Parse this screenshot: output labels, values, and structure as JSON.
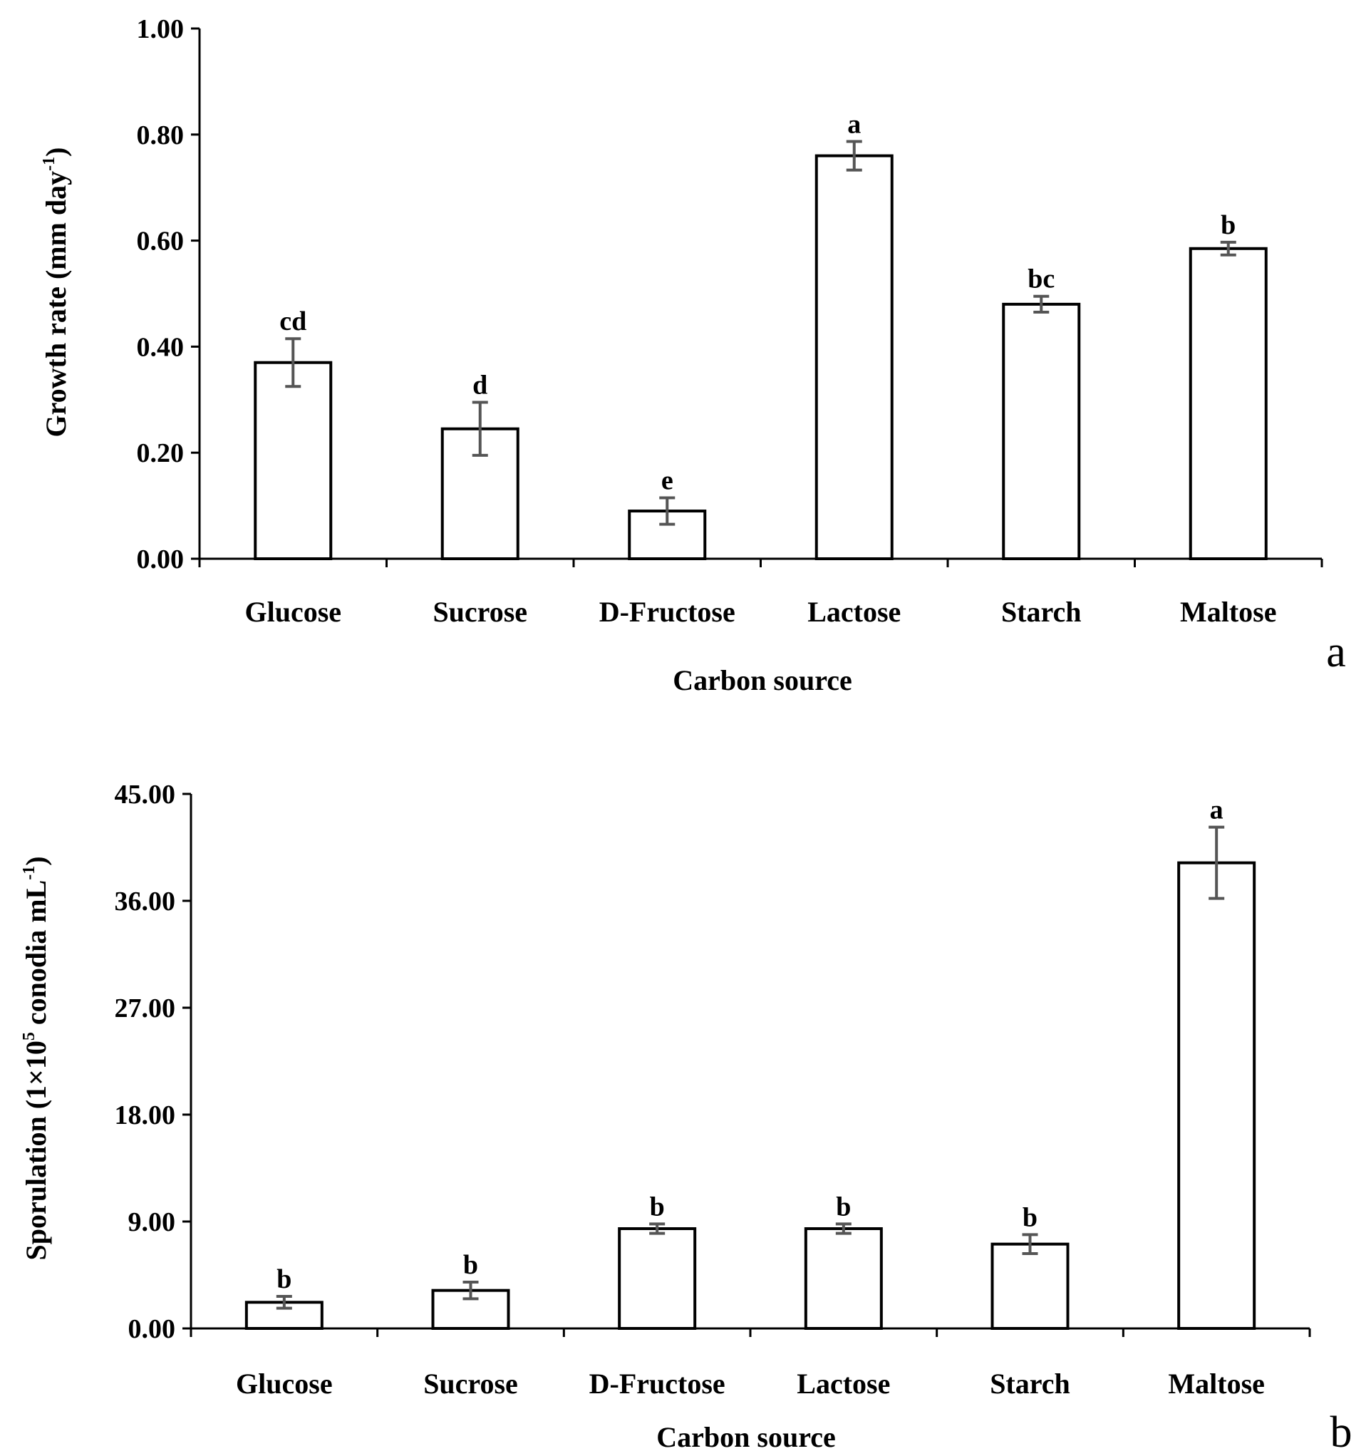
{
  "chart_data": [
    {
      "type": "bar",
      "panel": "a",
      "categories": [
        "Glucose",
        "Sucrose",
        "D-Fructose",
        "Lactose",
        "Starch",
        "Maltose"
      ],
      "values": [
        0.37,
        0.245,
        0.09,
        0.76,
        0.48,
        0.585
      ],
      "errors": [
        0.045,
        0.05,
        0.025,
        0.027,
        0.015,
        0.012
      ],
      "significance": [
        "cd",
        "d",
        "e",
        "a",
        "bc",
        "b"
      ],
      "yticks": [
        "0.00",
        "0.20",
        "0.40",
        "0.60",
        "0.80",
        "1.00"
      ],
      "ylim": [
        0,
        1.0
      ],
      "xlabel": "Carbon source",
      "ylabel": {
        "main": "Growth rate (mm day",
        "sup": "-1",
        "end": ")"
      }
    },
    {
      "type": "bar",
      "panel": "b",
      "categories": [
        "Glucose",
        "Sucrose",
        "D-Fructose",
        "Lactose",
        "Starch",
        "Maltose"
      ],
      "values": [
        2.2,
        3.2,
        8.4,
        8.4,
        7.1,
        39.2
      ],
      "errors": [
        0.5,
        0.7,
        0.4,
        0.4,
        0.8,
        3.0
      ],
      "significance": [
        "b",
        "b",
        "b",
        "b",
        "b",
        "a"
      ],
      "yticks": [
        "0.00",
        "9.00",
        "18.00",
        "27.00",
        "36.00",
        "45.00"
      ],
      "ylim": [
        0,
        45
      ],
      "xlabel": "Carbon source",
      "ylabel": {
        "pre": "Sporulation (1×10",
        "sup1": "5",
        "mid": " conodia mL",
        "sup2": "-1",
        "end": ")"
      }
    }
  ]
}
